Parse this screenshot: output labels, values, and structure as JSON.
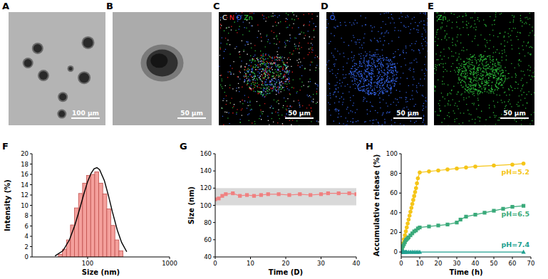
{
  "images": [
    {
      "label": "A",
      "scale_bar": "100 μm"
    },
    {
      "label": "B",
      "scale_bar": "50 μm"
    },
    {
      "label": "C",
      "scale_bar": "50 μm",
      "elements": [
        {
          "text": "C",
          "color": "#ffffff"
        },
        {
          "text": "N",
          "color": "#ff2020"
        },
        {
          "text": "O",
          "color": "#3a6cff"
        },
        {
          "text": "Zn",
          "color": "#30d040"
        }
      ]
    },
    {
      "label": "D",
      "scale_bar": "50 μm",
      "elements": [
        {
          "text": "O",
          "color": "#3a6cff"
        }
      ]
    },
    {
      "label": "E",
      "scale_bar": "50 μm",
      "elements": [
        {
          "text": "Zn",
          "color": "#30d040"
        }
      ]
    }
  ],
  "chart_data": [
    {
      "type": "histogram",
      "title": "F",
      "xlabel": "Size (nm)",
      "ylabel": "Intensity (%)",
      "log": "x",
      "xlim": [
        21,
        1000
      ],
      "xticks": [
        100,
        1000
      ],
      "ylim": [
        0,
        20
      ],
      "yticks": [
        0,
        2,
        4,
        6,
        8,
        10,
        12,
        14,
        16,
        18,
        20
      ],
      "color": "#f4a09c",
      "bins": [
        44,
        49.3,
        55.2,
        61.8,
        69.2,
        77.5,
        86.8,
        97.2,
        108.9,
        122,
        136.6,
        153,
        171.4,
        192,
        215,
        240.8,
        269.7
      ],
      "counts": [
        0.5,
        1.5,
        3.3,
        6.2,
        9.5,
        12.3,
        14.3,
        15.8,
        16.0,
        16.5,
        14.3,
        12.2,
        9.3,
        6.1,
        3.3,
        1.2
      ],
      "series": [
        {
          "type": "line",
          "color": "#000000",
          "x": [
            40,
            50,
            60,
            70,
            80,
            90,
            100,
            110,
            120,
            130,
            140,
            160,
            180,
            200,
            230,
            260,
            300
          ],
          "values": [
            0.2,
            1.2,
            3.3,
            6.2,
            9.3,
            12.2,
            14.6,
            16.2,
            17.1,
            17.3,
            16.9,
            14.8,
            11.8,
            8.8,
            5.2,
            2.8,
            1.0
          ]
        }
      ]
    },
    {
      "type": "line",
      "title": "G",
      "xlabel": "Time (D)",
      "ylabel": "Size (nm)",
      "xlim": [
        0,
        40
      ],
      "xticks": [
        0,
        10,
        20,
        30,
        40
      ],
      "ylim": [
        40,
        160
      ],
      "yticks": [
        40,
        60,
        80,
        100,
        120,
        140,
        160
      ],
      "band": [
        100,
        120
      ],
      "series": [
        {
          "color": "#f08080",
          "marker": "square",
          "x": [
            0,
            1,
            2,
            3,
            5,
            7,
            9,
            11,
            13,
            15,
            18,
            21,
            24,
            27,
            30,
            32,
            35,
            38,
            40
          ],
          "values": [
            107,
            108,
            111,
            113,
            114,
            111,
            112,
            111,
            112,
            113,
            113,
            112,
            113,
            112,
            113,
            114,
            114,
            114,
            113
          ]
        }
      ]
    },
    {
      "type": "line",
      "title": "H",
      "xlabel": "Time (h)",
      "ylabel": "Accumulative release (%)",
      "xlim": [
        0,
        70
      ],
      "xticks": [
        0,
        10,
        20,
        30,
        40,
        50,
        60,
        70
      ],
      "ylim": [
        -5,
        100
      ],
      "yticks": [
        0,
        20,
        40,
        60,
        80,
        100
      ],
      "series": [
        {
          "name": "pH=5.2",
          "color": "#f5c518",
          "marker": "circle",
          "x": [
            0,
            0.5,
            1,
            1.5,
            2,
            2.5,
            3,
            3.5,
            4,
            4.5,
            5,
            5.5,
            6,
            6.5,
            7,
            7.5,
            8,
            8.5,
            9,
            10,
            15,
            20,
            25,
            30,
            35,
            40,
            50,
            60,
            66
          ],
          "values": [
            0,
            5,
            9,
            13,
            17,
            21,
            25,
            29,
            33,
            37,
            41,
            45,
            49,
            53,
            57,
            61,
            65,
            70,
            75,
            81,
            82,
            83,
            84,
            85,
            86,
            87,
            88,
            89,
            90
          ]
        },
        {
          "name": "pH=6.5",
          "color": "#3aaa7a",
          "marker": "square",
          "x": [
            0,
            0.5,
            1,
            1.5,
            2,
            2.5,
            3,
            3.5,
            4,
            5,
            6,
            7,
            8,
            9,
            10,
            15,
            20,
            25,
            30,
            32,
            35,
            40,
            45,
            50,
            55,
            60,
            66
          ],
          "values": [
            0,
            3,
            6,
            8,
            10,
            12,
            13,
            14,
            15,
            17,
            19,
            21,
            22,
            24,
            25,
            26,
            27,
            28,
            30,
            33,
            36,
            38,
            40,
            42,
            44,
            46,
            47
          ]
        },
        {
          "name": "pH=7.4",
          "color": "#20a090",
          "marker": "triangle",
          "x": [
            0,
            0.5,
            1,
            1.5,
            2,
            2.5,
            3,
            4,
            5,
            6,
            7,
            8,
            9,
            10,
            66
          ],
          "values": [
            0,
            0,
            0,
            0,
            0,
            0,
            0,
            0,
            0,
            0,
            0,
            0,
            0,
            0,
            0
          ]
        }
      ]
    }
  ]
}
